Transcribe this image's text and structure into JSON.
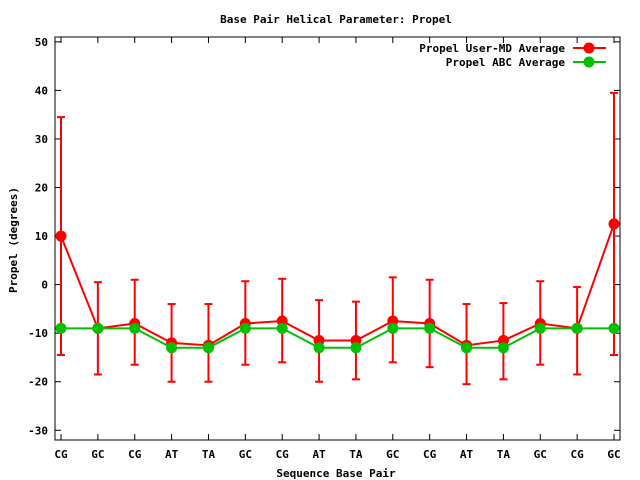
{
  "chart_data": {
    "type": "line",
    "title": "Base Pair Helical Parameter: Propel",
    "xlabel": "Sequence Base Pair",
    "ylabel": "Propel (degrees)",
    "categories": [
      "CG",
      "GC",
      "CG",
      "AT",
      "TA",
      "GC",
      "CG",
      "AT",
      "TA",
      "GC",
      "CG",
      "AT",
      "TA",
      "GC",
      "CG",
      "GC"
    ],
    "ylim": [
      -32,
      51
    ],
    "yticks": [
      -30,
      -20,
      -10,
      0,
      10,
      20,
      30,
      40,
      50
    ],
    "legend_position": "top-right",
    "series": [
      {
        "name": "Propel User-MD Average",
        "color": "#ff0000",
        "values": [
          10.0,
          -9.0,
          -8.0,
          -12.0,
          -12.5,
          -8.0,
          -7.5,
          -11.5,
          -11.5,
          -7.5,
          -8.0,
          -12.5,
          -11.5,
          -8.0,
          -9.0,
          12.5
        ],
        "error_low": [
          -14.5,
          -18.5,
          -16.5,
          -20.0,
          -20.0,
          -16.5,
          -16.0,
          -20.0,
          -19.5,
          -16.0,
          -17.0,
          -20.5,
          -19.5,
          -16.5,
          -18.5,
          -14.5
        ],
        "error_high": [
          34.5,
          0.5,
          1.0,
          -4.0,
          -4.0,
          0.7,
          1.2,
          -3.2,
          -3.5,
          1.5,
          1.0,
          -4.0,
          -3.8,
          0.7,
          -0.5,
          39.5
        ]
      },
      {
        "name": "Propel ABC Average",
        "color": "#00c000",
        "values": [
          -9.0,
          -9.0,
          -9.0,
          -13.0,
          -13.0,
          -9.0,
          -9.0,
          -13.0,
          -13.0,
          -9.0,
          -9.0,
          -13.0,
          -13.0,
          -9.0,
          -9.0,
          -9.0
        ]
      }
    ]
  }
}
